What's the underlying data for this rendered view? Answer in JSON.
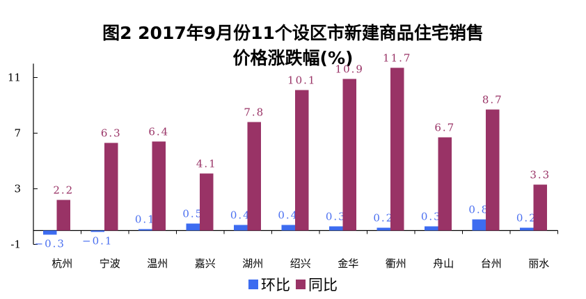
{
  "chart_data": {
    "type": "bar",
    "title_line1": "图2 2017年9月份11个设区市新建商品住宅销售",
    "title_line2": "价格涨跌幅(%)",
    "categories": [
      "杭州",
      "宁波",
      "温州",
      "嘉兴",
      "湖州",
      "绍兴",
      "金华",
      "衢州",
      "舟山",
      "台州",
      "丽水"
    ],
    "series": [
      {
        "name": "环比",
        "color": "#3d6cf0",
        "label_color": "#4a6ff0",
        "values": [
          -0.3,
          -0.1,
          0.1,
          0.5,
          0.4,
          0.4,
          0.3,
          0.2,
          0.3,
          0.8,
          0.2
        ]
      },
      {
        "name": "同比",
        "color": "#993366",
        "label_color": "#993366",
        "values": [
          2.2,
          6.3,
          6.4,
          4.1,
          7.8,
          10.1,
          10.9,
          11.7,
          6.7,
          8.7,
          3.3
        ]
      }
    ],
    "yticks": [
      -1,
      3,
      7,
      11
    ],
    "ylim": [
      -1,
      12
    ],
    "grid": false,
    "legend": "bottom"
  }
}
